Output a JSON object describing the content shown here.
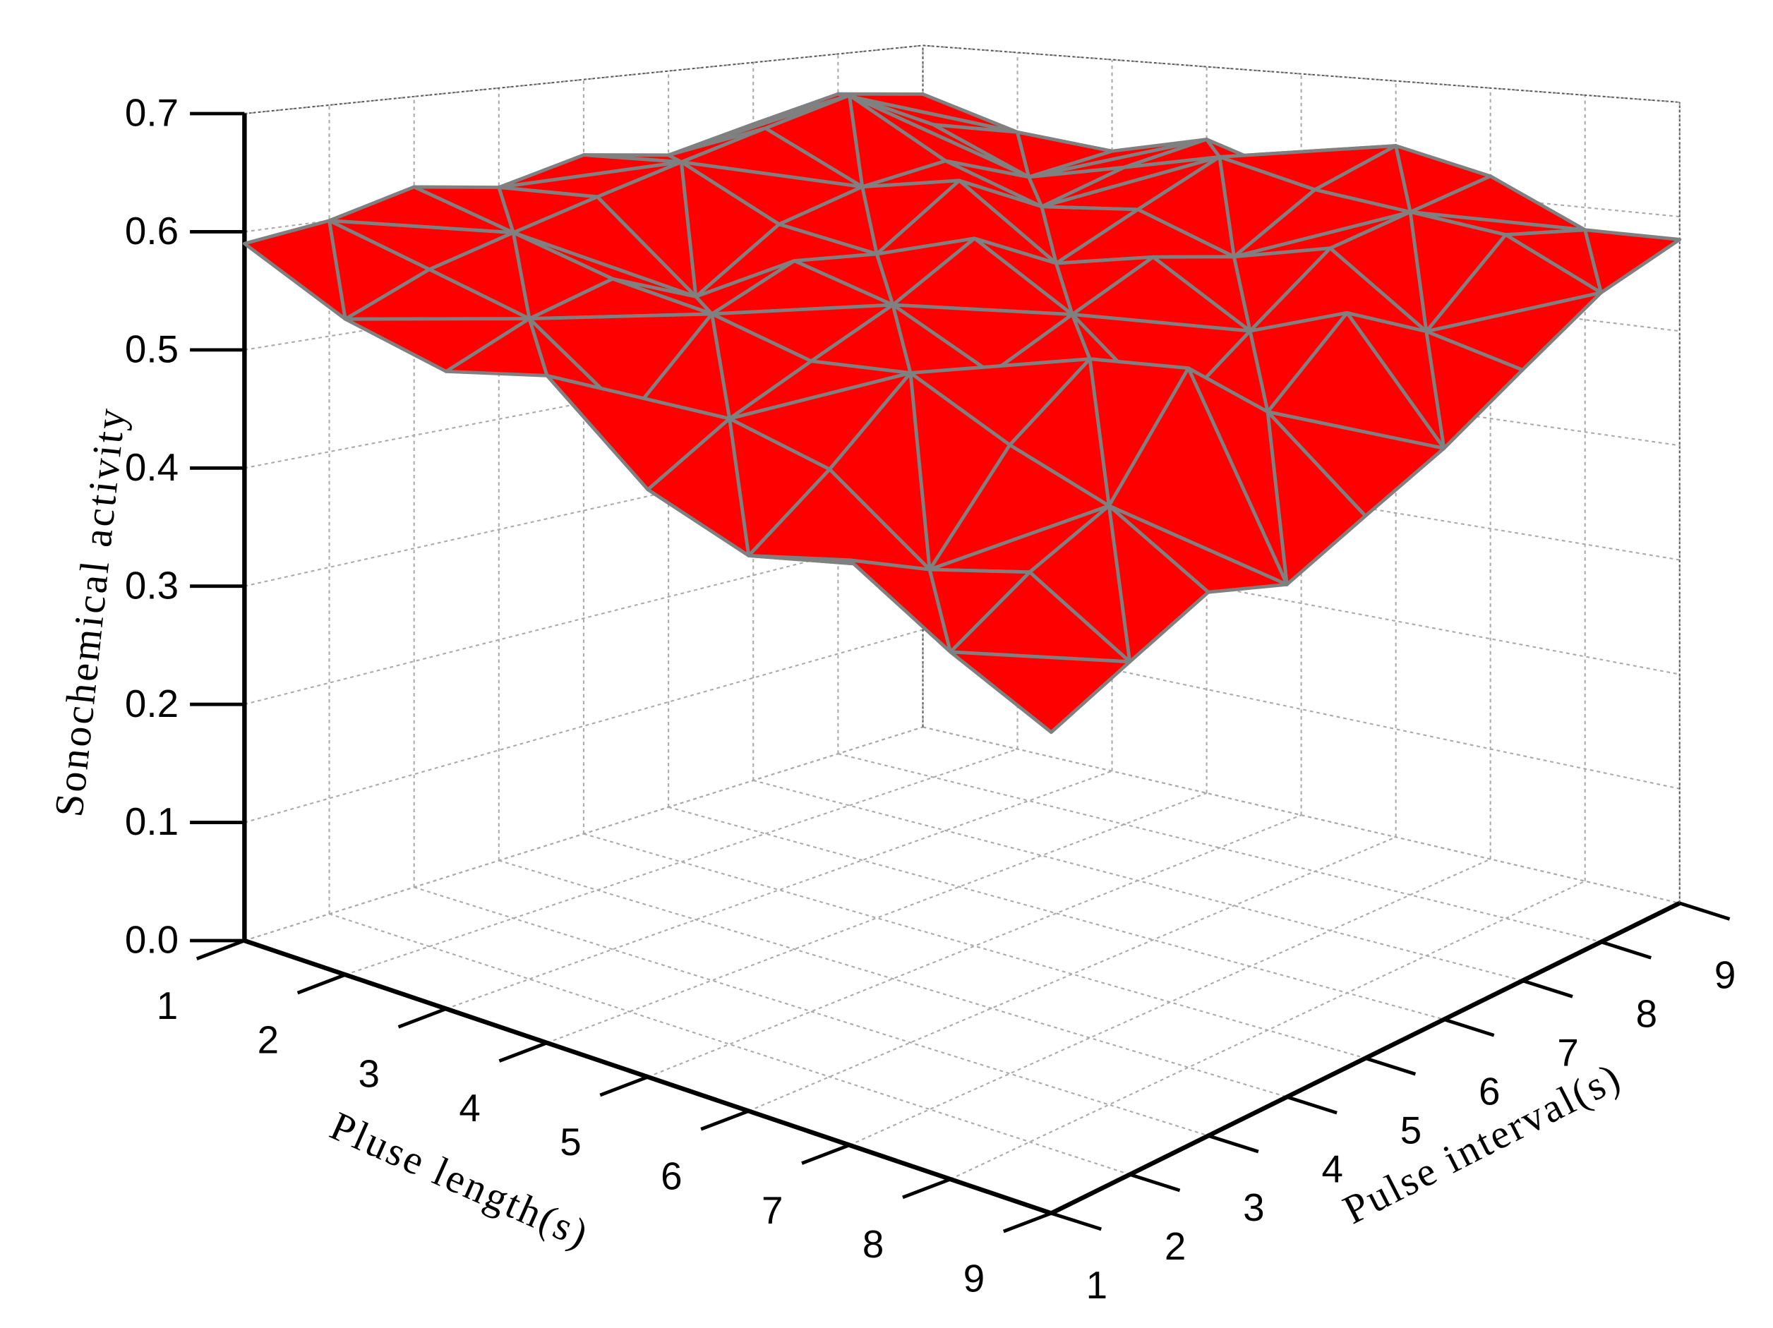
{
  "chart_data": {
    "type": "surface",
    "x_label": "Pluse length(s)",
    "y_label": "Pulse interval(s)",
    "z_label": "Sonochemical activity",
    "x": [
      1,
      2,
      3,
      4,
      5,
      6,
      7,
      8,
      9
    ],
    "y": [
      1,
      2,
      3,
      4,
      5,
      6,
      7,
      8,
      9
    ],
    "z": [
      [
        0.59,
        0.6,
        0.62,
        0.61,
        0.63,
        0.62,
        0.64,
        0.66,
        0.65
      ],
      [
        0.55,
        0.58,
        0.6,
        0.62,
        0.64,
        0.66,
        0.68,
        0.64,
        0.62
      ],
      [
        0.53,
        0.56,
        0.58,
        0.55,
        0.6,
        0.62,
        0.63,
        0.6,
        0.61
      ],
      [
        0.55,
        0.5,
        0.57,
        0.6,
        0.59,
        0.64,
        0.6,
        0.62,
        0.63
      ],
      [
        0.48,
        0.52,
        0.55,
        0.58,
        0.62,
        0.58,
        0.61,
        0.64,
        0.6
      ],
      [
        0.45,
        0.5,
        0.56,
        0.54,
        0.57,
        0.6,
        0.58,
        0.62,
        0.64
      ],
      [
        0.47,
        0.44,
        0.52,
        0.57,
        0.5,
        0.55,
        0.6,
        0.61,
        0.62
      ],
      [
        0.42,
        0.46,
        0.49,
        0.58,
        0.52,
        0.58,
        0.54,
        0.6,
        0.58
      ],
      [
        0.38,
        0.41,
        0.44,
        0.42,
        0.45,
        0.48,
        0.52,
        0.56,
        0.58
      ]
    ],
    "xlim": [
      1,
      9
    ],
    "ylim": [
      1,
      9
    ],
    "zlim": [
      0,
      0.7
    ],
    "xticks": [
      1,
      2,
      3,
      4,
      5,
      6,
      7,
      8,
      9
    ],
    "yticks": [
      1,
      2,
      3,
      4,
      5,
      6,
      7,
      8,
      9
    ],
    "zticks": [
      {
        "value": 0,
        "label": "0.0"
      },
      0.1,
      0.2,
      0.3,
      0.4,
      0.5,
      0.6,
      0.7
    ],
    "grid": true,
    "color": "#ff0000",
    "underside_color": "#0000ff",
    "mesh_color": "#808080"
  }
}
